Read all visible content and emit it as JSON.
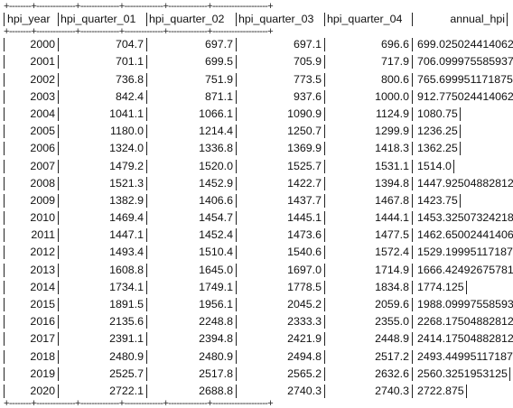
{
  "table": {
    "columns": [
      "hpi_year",
      "hpi_quarter_01",
      "hpi_quarter_02",
      "hpi_quarter_03",
      "hpi_quarter_04",
      "annual_hpi"
    ],
    "rows": [
      [
        "2000",
        "704.7",
        "697.7",
        "697.1",
        "696.6",
        "699.0250244140625"
      ],
      [
        "2001",
        "701.1",
        "699.5",
        "705.9",
        "717.9",
        "706.0999755859375"
      ],
      [
        "2002",
        "736.8",
        "751.9",
        "773.5",
        "800.6",
        "765.699951171875"
      ],
      [
        "2003",
        "842.4",
        "871.1",
        "937.6",
        "1000.0",
        "912.7750244140625"
      ],
      [
        "2004",
        "1041.1",
        "1066.1",
        "1090.9",
        "1124.9",
        "1080.75"
      ],
      [
        "2005",
        "1180.0",
        "1214.4",
        "1250.7",
        "1299.9",
        "1236.25"
      ],
      [
        "2006",
        "1324.0",
        "1336.8",
        "1369.9",
        "1418.3",
        "1362.25"
      ],
      [
        "2007",
        "1479.2",
        "1520.0",
        "1525.7",
        "1531.1",
        "1514.0"
      ],
      [
        "2008",
        "1521.3",
        "1452.9",
        "1422.7",
        "1394.8",
        "1447.925048828125"
      ],
      [
        "2009",
        "1382.9",
        "1406.6",
        "1437.7",
        "1467.8",
        "1423.75"
      ],
      [
        "2010",
        "1469.4",
        "1454.7",
        "1445.1",
        "1444.1",
        "1453.3250732421875"
      ],
      [
        "2011",
        "1447.1",
        "1452.4",
        "1473.6",
        "1477.5",
        "1462.6500244140625"
      ],
      [
        "2012",
        "1493.4",
        "1510.4",
        "1540.6",
        "1572.4",
        "1529.199951171875"
      ],
      [
        "2013",
        "1608.8",
        "1645.0",
        "1697.0",
        "1714.9",
        "1666.4249267578125"
      ],
      [
        "2014",
        "1734.1",
        "1749.1",
        "1778.5",
        "1834.8",
        "1774.125"
      ],
      [
        "2015",
        "1891.5",
        "1956.1",
        "2045.2",
        "2059.6",
        "1988.0999755859375"
      ],
      [
        "2016",
        "2135.6",
        "2248.8",
        "2333.3",
        "2355.0",
        "2268.175048828125"
      ],
      [
        "2017",
        "2391.1",
        "2394.8",
        "2421.9",
        "2448.9",
        "2414.175048828125"
      ],
      [
        "2018",
        "2480.9",
        "2480.9",
        "2494.8",
        "2517.2",
        "2493.449951171875"
      ],
      [
        "2019",
        "2525.7",
        "2517.8",
        "2565.2",
        "2632.6",
        "2560.3251953125"
      ],
      [
        "2020",
        "2722.1",
        "2688.8",
        "2740.3",
        "2740.3",
        "2722.875"
      ]
    ]
  },
  "borders": {
    "rule_line": "+--------+--------------+--------------+--------------+--------------+--------------------+"
  }
}
